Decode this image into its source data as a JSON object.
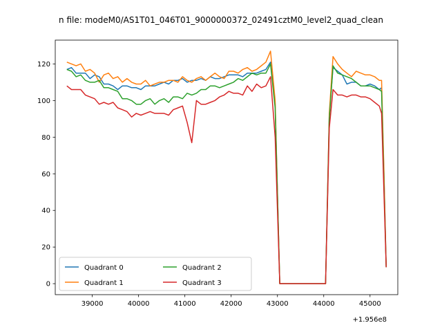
{
  "chart_data": {
    "type": "line",
    "title": "n file: modeM0/AS1T01_046T01_9000000372_02491cztM0_level2_quad_clean",
    "x_offset_label": "+1.956e8",
    "xlim": [
      38200,
      45600
    ],
    "ylim": [
      -6,
      133
    ],
    "x_ticks": [
      39000,
      40000,
      41000,
      42000,
      43000,
      44000,
      45000
    ],
    "x_tick_labels": [
      "39000",
      "40000",
      "41000",
      "42000",
      "43000",
      "44000",
      "45000"
    ],
    "y_ticks": [
      0,
      20,
      40,
      60,
      80,
      100,
      120
    ],
    "y_tick_labels": [
      "0",
      "20",
      "40",
      "60",
      "80",
      "100",
      "120"
    ],
    "legend": {
      "placement": "lower-left",
      "columns": 2
    },
    "series": [
      {
        "name": "Quadrant 0",
        "color": "#1f77b4",
        "x": [
          38450,
          38550,
          38650,
          38750,
          38850,
          38950,
          39050,
          39150,
          39250,
          39350,
          39450,
          39550,
          39650,
          39750,
          39850,
          39950,
          40050,
          40150,
          40250,
          40350,
          40450,
          40550,
          40650,
          40750,
          40850,
          40950,
          41050,
          41150,
          41250,
          41350,
          41450,
          41550,
          41650,
          41750,
          41850,
          41950,
          42050,
          42150,
          42250,
          42350,
          42450,
          42550,
          42650,
          42750,
          42850,
          42950,
          43050,
          43150,
          43250,
          43350,
          43450,
          43550,
          43650,
          43750,
          43850,
          43950,
          44040,
          44120,
          44200,
          44300,
          44400,
          44500,
          44600,
          44700,
          44800,
          44900,
          45000,
          45100,
          45200,
          45250,
          45300,
          45350
        ],
        "y": [
          117,
          118,
          115,
          115,
          115,
          112,
          114,
          113,
          109,
          109,
          108,
          106,
          108,
          108,
          107,
          107,
          106,
          108,
          108,
          108,
          109,
          110,
          109,
          111,
          111,
          112,
          110,
          111,
          111,
          112,
          111,
          113,
          112,
          112,
          113,
          114,
          114,
          114,
          113,
          115,
          115,
          115,
          116,
          117,
          121,
          98,
          0,
          0,
          0,
          0,
          0,
          0,
          0,
          0,
          0,
          0,
          0,
          92,
          118,
          116,
          114,
          109,
          110,
          110,
          108,
          108,
          109,
          108,
          106,
          107,
          60,
          9
        ]
      },
      {
        "name": "Quadrant 1",
        "color": "#ff7f0e",
        "x": [
          38450,
          38550,
          38650,
          38750,
          38850,
          38950,
          39050,
          39150,
          39250,
          39350,
          39450,
          39550,
          39650,
          39750,
          39850,
          39950,
          40050,
          40150,
          40250,
          40350,
          40450,
          40550,
          40650,
          40750,
          40850,
          40950,
          41050,
          41150,
          41250,
          41350,
          41450,
          41550,
          41650,
          41750,
          41850,
          41950,
          42050,
          42150,
          42250,
          42350,
          42450,
          42550,
          42650,
          42750,
          42850,
          42950,
          43050,
          43150,
          43250,
          43350,
          43450,
          43550,
          43650,
          43750,
          43850,
          43950,
          44040,
          44120,
          44200,
          44300,
          44400,
          44500,
          44600,
          44700,
          44800,
          44900,
          45000,
          45100,
          45200,
          45250,
          45300,
          45350
        ],
        "y": [
          121,
          120,
          119,
          120,
          116,
          117,
          115,
          110,
          114,
          115,
          112,
          113,
          110,
          112,
          110,
          109,
          109,
          111,
          108,
          109,
          110,
          110,
          111,
          111,
          110,
          113,
          111,
          110,
          112,
          113,
          111,
          113,
          115,
          113,
          112,
          116,
          116,
          115,
          117,
          118,
          116,
          117,
          119,
          121,
          127,
          100,
          0,
          0,
          0,
          0,
          0,
          0,
          0,
          0,
          0,
          0,
          0,
          93,
          124,
          120,
          117,
          115,
          113,
          116,
          115,
          114,
          114,
          113,
          111,
          111,
          62,
          9
        ]
      },
      {
        "name": "Quadrant 2",
        "color": "#2ca02c",
        "x": [
          38450,
          38550,
          38650,
          38750,
          38850,
          38950,
          39050,
          39150,
          39250,
          39350,
          39450,
          39550,
          39650,
          39750,
          39850,
          39950,
          40050,
          40150,
          40250,
          40350,
          40450,
          40550,
          40650,
          40750,
          40850,
          40950,
          41050,
          41150,
          41250,
          41350,
          41450,
          41550,
          41650,
          41750,
          41850,
          41950,
          42050,
          42150,
          42250,
          42350,
          42450,
          42550,
          42650,
          42750,
          42850,
          42950,
          43050,
          43150,
          43250,
          43350,
          43450,
          43550,
          43650,
          43750,
          43850,
          43950,
          44040,
          44120,
          44200,
          44300,
          44400,
          44500,
          44600,
          44700,
          44800,
          44900,
          45000,
          45100,
          45200,
          45250,
          45300,
          45350
        ],
        "y": [
          117,
          116,
          113,
          114,
          111,
          110,
          110,
          111,
          107,
          107,
          106,
          105,
          101,
          101,
          100,
          98,
          98,
          100,
          101,
          98,
          100,
          101,
          99,
          102,
          102,
          101,
          104,
          103,
          104,
          106,
          106,
          108,
          108,
          107,
          108,
          109,
          110,
          112,
          111,
          113,
          115,
          114,
          115,
          115,
          120,
          96,
          0,
          0,
          0,
          0,
          0,
          0,
          0,
          0,
          0,
          0,
          0,
          90,
          119,
          115,
          114,
          113,
          112,
          110,
          108,
          108,
          108,
          107,
          106,
          105,
          55,
          9
        ]
      },
      {
        "name": "Quadrant 3",
        "color": "#d62728",
        "x": [
          38450,
          38550,
          38650,
          38750,
          38850,
          38950,
          39050,
          39150,
          39250,
          39350,
          39450,
          39550,
          39650,
          39750,
          39850,
          39950,
          40050,
          40150,
          40250,
          40350,
          40450,
          40550,
          40650,
          40750,
          40850,
          40950,
          41050,
          41150,
          41250,
          41350,
          41450,
          41550,
          41650,
          41750,
          41850,
          41950,
          42050,
          42150,
          42250,
          42350,
          42450,
          42550,
          42650,
          42750,
          42850,
          42950,
          43050,
          43150,
          43250,
          43350,
          43450,
          43550,
          43650,
          43750,
          43850,
          43950,
          44040,
          44120,
          44200,
          44300,
          44400,
          44500,
          44600,
          44700,
          44800,
          44900,
          45000,
          45100,
          45200,
          45250,
          45300,
          45350
        ],
        "y": [
          108,
          106,
          106,
          106,
          103,
          102,
          101,
          98,
          99,
          98,
          99,
          96,
          95,
          94,
          91,
          93,
          92,
          93,
          94,
          93,
          93,
          93,
          92,
          95,
          96,
          97,
          88,
          77,
          100,
          98,
          98,
          99,
          100,
          102,
          103,
          105,
          104,
          104,
          103,
          108,
          105,
          109,
          107,
          108,
          113,
          80,
          0,
          0,
          0,
          0,
          0,
          0,
          0,
          0,
          0,
          0,
          0,
          85,
          106,
          103,
          103,
          102,
          103,
          103,
          102,
          102,
          101,
          99,
          97,
          93,
          50,
          9
        ]
      }
    ]
  }
}
